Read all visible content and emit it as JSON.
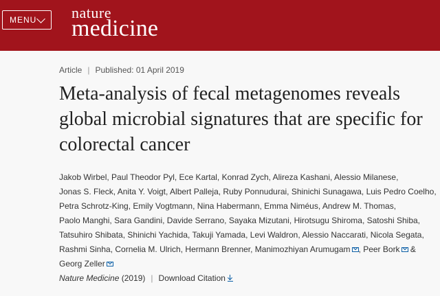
{
  "header": {
    "menu_label": "MENU",
    "logo_line1": "nature",
    "logo_line2": "medicine",
    "background_color": "#a1141c"
  },
  "article": {
    "type": "Article",
    "published": "Published: 01 April 2019",
    "title": "Meta-analysis of fecal metagenomes reveals global microbial signatures that are specific for colorectal cancer",
    "authors": [
      {
        "name": "Jakob Wirbel",
        "email": false
      },
      {
        "name": "Paul Theodor Pyl",
        "email": false
      },
      {
        "name": "Ece Kartal",
        "email": false
      },
      {
        "name": "Konrad Zych",
        "email": false
      },
      {
        "name": "Alireza Kashani",
        "email": false
      },
      {
        "name": "Alessio Milanese",
        "email": false
      },
      {
        "name": "Jonas S. Fleck",
        "email": false
      },
      {
        "name": "Anita Y. Voigt",
        "email": false
      },
      {
        "name": "Albert Palleja",
        "email": false
      },
      {
        "name": "Ruby Ponnudurai",
        "email": false
      },
      {
        "name": "Shinichi Sunagawa",
        "email": false
      },
      {
        "name": "Luis Pedro Coelho",
        "email": false
      },
      {
        "name": "Petra Schrotz-King",
        "email": false
      },
      {
        "name": "Emily Vogtmann",
        "email": false
      },
      {
        "name": "Nina Habermann",
        "email": false
      },
      {
        "name": "Emma Niméus",
        "email": false
      },
      {
        "name": "Andrew M. Thomas",
        "email": false
      },
      {
        "name": "Paolo Manghi",
        "email": false
      },
      {
        "name": "Sara Gandini",
        "email": false
      },
      {
        "name": "Davide Serrano",
        "email": false
      },
      {
        "name": "Sayaka Mizutani",
        "email": false
      },
      {
        "name": "Hirotsugu Shiroma",
        "email": false
      },
      {
        "name": "Satoshi Shiba",
        "email": false
      },
      {
        "name": "Tatsuhiro Shibata",
        "email": false
      },
      {
        "name": "Shinichi Yachida",
        "email": false
      },
      {
        "name": "Takuji Yamada",
        "email": false
      },
      {
        "name": "Levi Waldron",
        "email": false
      },
      {
        "name": "Alessio Naccarati",
        "email": false
      },
      {
        "name": "Nicola Segata",
        "email": false
      },
      {
        "name": "Rashmi Sinha",
        "email": false
      },
      {
        "name": "Cornelia M. Ulrich",
        "email": false
      },
      {
        "name": "Hermann Brenner",
        "email": false
      },
      {
        "name": "Manimozhiyan Arumugam",
        "email": true
      },
      {
        "name": "Peer Bork",
        "email": true
      },
      {
        "name": "Georg Zeller",
        "email": true
      }
    ],
    "journal": "Nature Medicine",
    "year": "(2019)",
    "download_citation": "Download Citation"
  }
}
